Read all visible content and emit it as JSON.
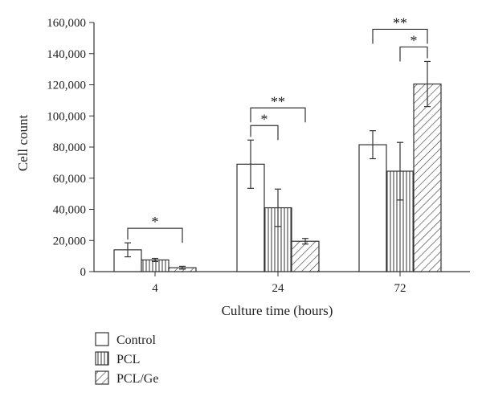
{
  "chart_data": {
    "type": "bar",
    "xlabel": "Culture time (hours)",
    "ylabel": "Cell count",
    "categories": [
      "4",
      "24",
      "72"
    ],
    "ylim": [
      0,
      160000
    ],
    "yticks": [
      0,
      20000,
      40000,
      60000,
      80000,
      100000,
      120000,
      140000,
      160000
    ],
    "ytick_labels": [
      "0",
      "20,000",
      "40,000",
      "60,000",
      "80,000",
      "100,000",
      "120,000",
      "140,000",
      "160,000"
    ],
    "series": [
      {
        "name": "Control",
        "pattern": "plain",
        "values": [
          14000,
          69000,
          81500
        ],
        "errors": [
          4500,
          15500,
          9000
        ]
      },
      {
        "name": "PCL",
        "pattern": "vertical-lines",
        "values": [
          7500,
          41000,
          64500
        ],
        "errors": [
          1000,
          12000,
          18500
        ]
      },
      {
        "name": "PCL/Ge",
        "pattern": "diagonal-lines",
        "values": [
          2500,
          19500,
          120500
        ],
        "errors": [
          900,
          1800,
          14500
        ]
      }
    ],
    "significance": [
      {
        "category": 0,
        "from_series": 0,
        "to_series": 2,
        "label": "*",
        "level": 0
      },
      {
        "category": 1,
        "from_series": 0,
        "to_series": 1,
        "label": "*",
        "level": 0
      },
      {
        "category": 1,
        "from_series": 0,
        "to_series": 2,
        "label": "**",
        "level": 1
      },
      {
        "category": 2,
        "from_series": 1,
        "to_series": 2,
        "label": "*",
        "level": 0
      },
      {
        "category": 2,
        "from_series": 0,
        "to_series": 2,
        "label": "**",
        "level": 1
      }
    ],
    "legend_position": "bottom-left",
    "grid": false
  }
}
